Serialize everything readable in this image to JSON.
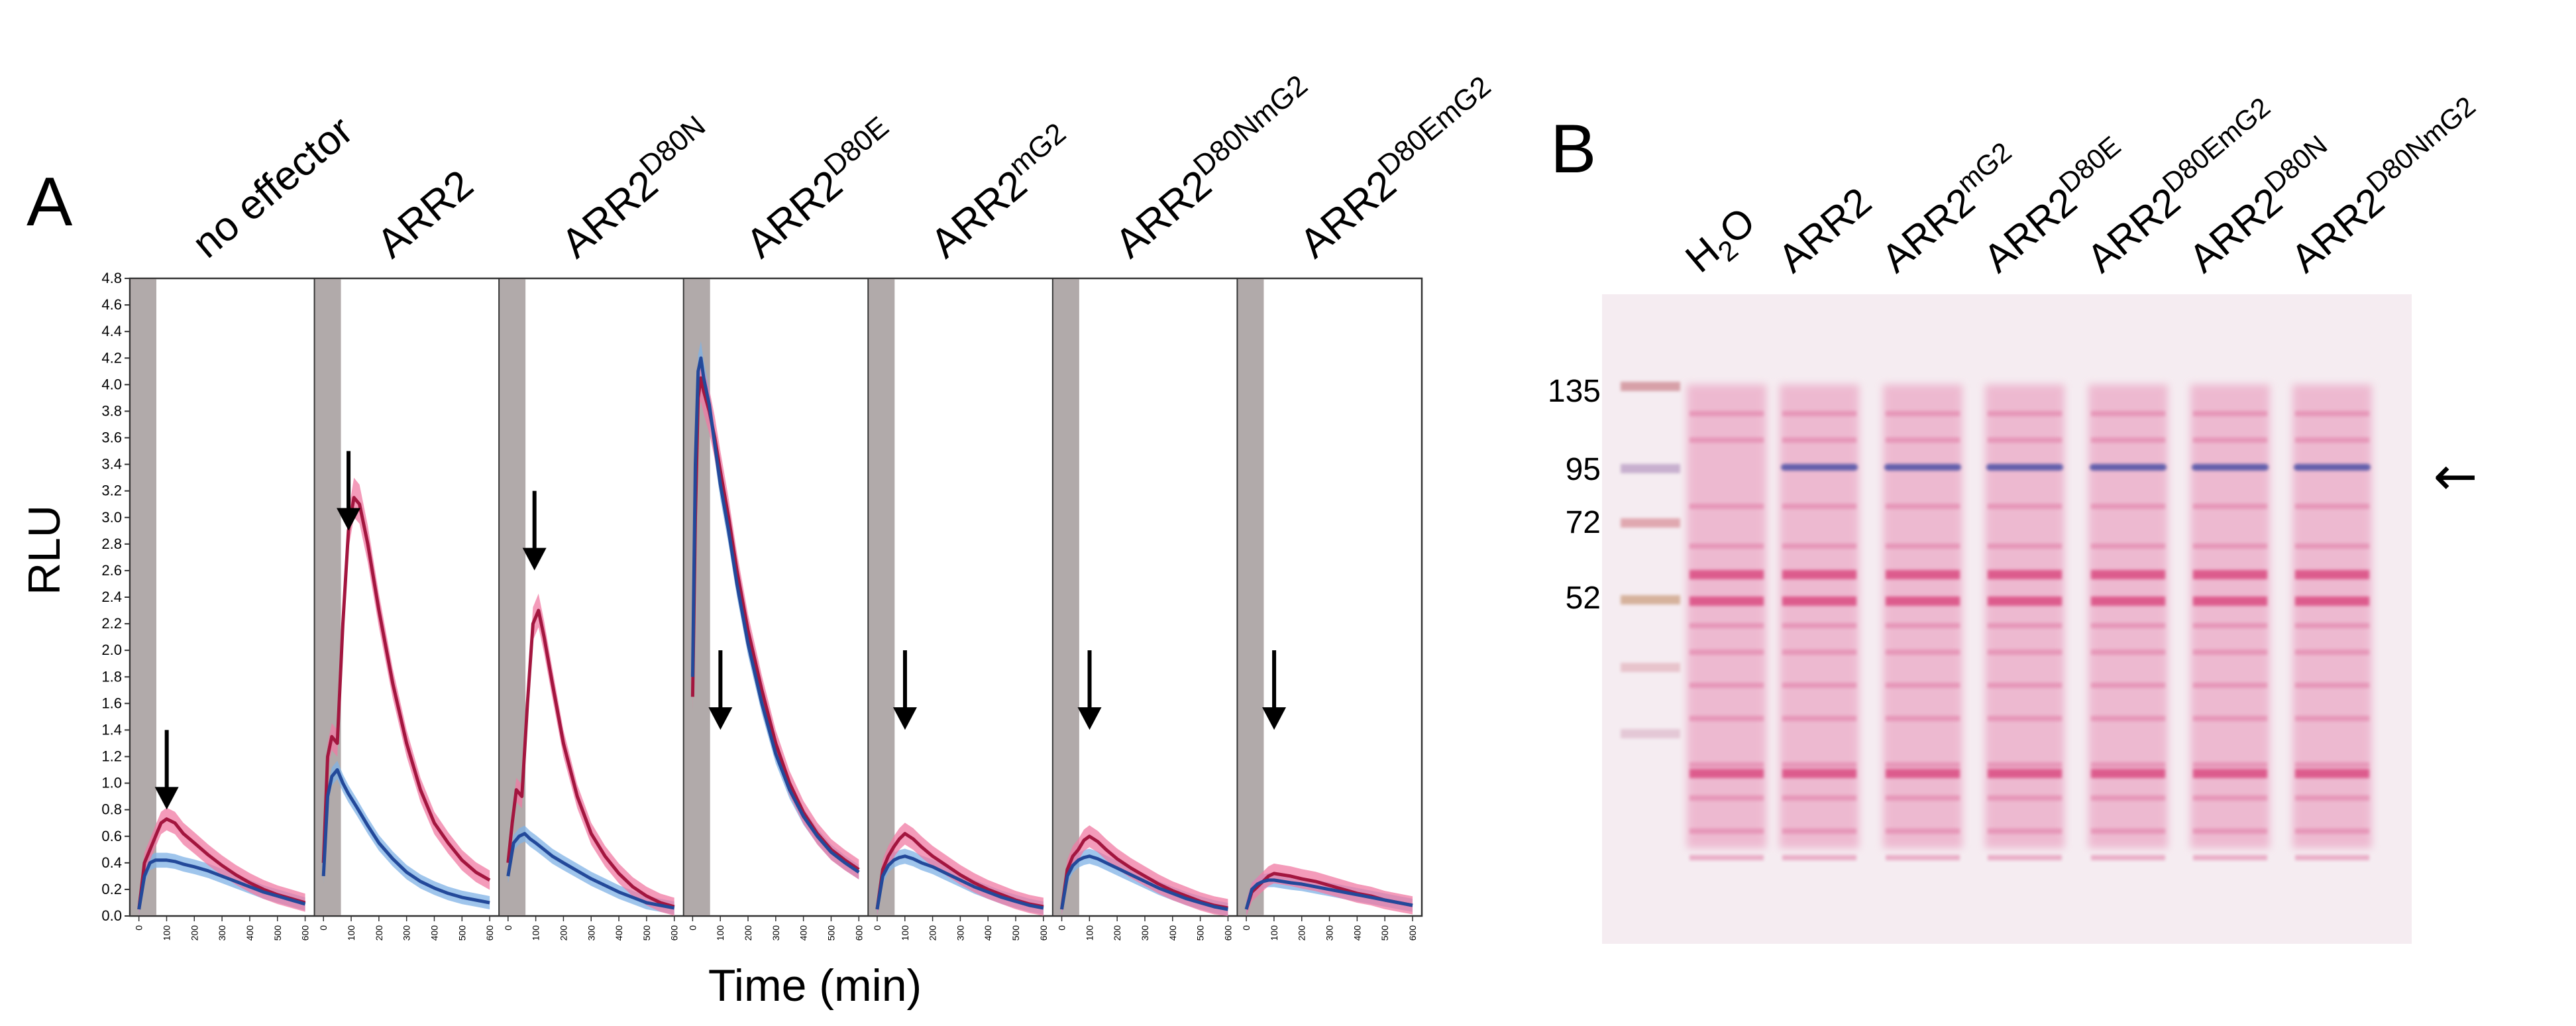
{
  "figure": {
    "panel_a_letter": "A",
    "panel_b_letter": "B"
  },
  "colors": {
    "with_effector_line": "#a3163f",
    "with_effector_band": "#f07aa3",
    "control_line": "#23499a",
    "control_band": "#7fb2e6",
    "treatment_shading": "#a39b9b"
  },
  "chart_data": {
    "type": "line",
    "ylabel": "RLU",
    "xlabel": "Time (min)",
    "ylim": [
      0,
      4.8
    ],
    "xlim": [
      0,
      600
    ],
    "yticks": [
      "0.0",
      "0.2",
      "0.4",
      "0.6",
      "0.8",
      "1.0",
      "1.2",
      "1.4",
      "1.6",
      "1.8",
      "2.0",
      "2.2",
      "2.4",
      "2.6",
      "2.8",
      "3.0",
      "3.2",
      "3.4",
      "3.6",
      "3.8",
      "4.0",
      "4.2",
      "4.4",
      "4.6",
      "4.8"
    ],
    "xticks": [
      "0",
      "100",
      "200",
      "300",
      "400",
      "500",
      "600"
    ],
    "grid": false,
    "panels": [
      {
        "label": "no effector",
        "sup": "",
        "arrow_x": 110,
        "arrow_y": 1.4,
        "pink_x": [
          0,
          20,
          40,
          60,
          80,
          100,
          130,
          160,
          200,
          250,
          300,
          350,
          400,
          450,
          500,
          550,
          600
        ],
        "pink_y": [
          0.05,
          0.4,
          0.5,
          0.6,
          0.7,
          0.73,
          0.7,
          0.62,
          0.55,
          0.46,
          0.38,
          0.31,
          0.25,
          0.2,
          0.16,
          0.13,
          0.1
        ],
        "blue_x": [
          0,
          20,
          40,
          60,
          80,
          100,
          130,
          160,
          200,
          250,
          300,
          350,
          400,
          450,
          500,
          550,
          600
        ],
        "blue_y": [
          0.05,
          0.3,
          0.4,
          0.42,
          0.42,
          0.42,
          0.41,
          0.39,
          0.37,
          0.34,
          0.3,
          0.26,
          0.22,
          0.18,
          0.15,
          0.12,
          0.09
        ]
      },
      {
        "label": "ARR2",
        "sup": "",
        "arrow_x": 100,
        "arrow_y": 3.5,
        "pink_x": [
          0,
          15,
          30,
          50,
          70,
          90,
          110,
          130,
          160,
          200,
          250,
          300,
          350,
          400,
          450,
          500,
          550,
          600
        ],
        "pink_y": [
          0.4,
          1.2,
          1.35,
          1.3,
          2.2,
          2.9,
          3.15,
          3.1,
          2.8,
          2.3,
          1.75,
          1.3,
          0.95,
          0.7,
          0.55,
          0.42,
          0.33,
          0.27
        ],
        "blue_x": [
          0,
          15,
          30,
          50,
          70,
          90,
          120,
          160,
          200,
          250,
          300,
          350,
          400,
          450,
          500,
          550,
          600
        ],
        "blue_y": [
          0.3,
          0.9,
          1.05,
          1.1,
          1.0,
          0.92,
          0.82,
          0.68,
          0.55,
          0.43,
          0.33,
          0.26,
          0.21,
          0.17,
          0.14,
          0.12,
          0.1
        ]
      },
      {
        "label": "ARR2",
        "sup": "D80N",
        "arrow_x": 105,
        "arrow_y": 3.2,
        "pink_x": [
          0,
          15,
          30,
          50,
          70,
          90,
          110,
          130,
          160,
          200,
          250,
          300,
          350,
          400,
          450,
          500,
          550,
          600
        ],
        "pink_y": [
          0.4,
          0.7,
          0.95,
          0.9,
          1.6,
          2.2,
          2.3,
          2.1,
          1.75,
          1.3,
          0.9,
          0.62,
          0.45,
          0.32,
          0.22,
          0.15,
          0.1,
          0.07
        ],
        "blue_x": [
          0,
          20,
          40,
          60,
          80,
          100,
          130,
          160,
          200,
          250,
          300,
          350,
          400,
          450,
          500,
          550,
          600
        ],
        "blue_y": [
          0.3,
          0.55,
          0.6,
          0.62,
          0.58,
          0.55,
          0.5,
          0.45,
          0.4,
          0.34,
          0.28,
          0.23,
          0.18,
          0.14,
          0.1,
          0.08,
          0.06
        ]
      },
      {
        "label": "ARR2",
        "sup": "D80E",
        "arrow_x": 110,
        "arrow_y": 2.0,
        "pink_x": [
          0,
          10,
          20,
          30,
          40,
          60,
          80,
          100,
          130,
          160,
          200,
          250,
          300,
          350,
          400,
          450,
          500,
          550,
          600
        ],
        "pink_y": [
          1.65,
          3.0,
          3.9,
          4.05,
          3.95,
          3.8,
          3.6,
          3.35,
          3.0,
          2.6,
          2.15,
          1.7,
          1.3,
          1.0,
          0.78,
          0.62,
          0.5,
          0.42,
          0.35
        ],
        "blue_x": [
          0,
          10,
          20,
          30,
          40,
          60,
          80,
          100,
          130,
          160,
          200,
          250,
          300,
          350,
          400,
          450,
          500,
          550,
          600
        ],
        "blue_y": [
          1.8,
          3.4,
          4.1,
          4.2,
          4.05,
          3.85,
          3.55,
          3.25,
          2.9,
          2.5,
          2.05,
          1.6,
          1.22,
          0.95,
          0.75,
          0.6,
          0.48,
          0.4,
          0.33
        ]
      },
      {
        "label": "ARR2",
        "sup": "mG2",
        "arrow_x": 110,
        "arrow_y": 2.0,
        "pink_x": [
          0,
          20,
          40,
          60,
          80,
          100,
          130,
          160,
          200,
          250,
          300,
          350,
          400,
          450,
          500,
          550,
          600
        ],
        "pink_y": [
          0.05,
          0.35,
          0.45,
          0.52,
          0.58,
          0.62,
          0.58,
          0.52,
          0.45,
          0.38,
          0.31,
          0.25,
          0.2,
          0.16,
          0.12,
          0.09,
          0.07
        ],
        "blue_x": [
          0,
          20,
          40,
          60,
          80,
          100,
          130,
          160,
          200,
          250,
          300,
          350,
          400,
          450,
          500,
          550,
          600
        ],
        "blue_y": [
          0.05,
          0.3,
          0.38,
          0.42,
          0.44,
          0.45,
          0.43,
          0.4,
          0.37,
          0.32,
          0.27,
          0.22,
          0.18,
          0.14,
          0.11,
          0.08,
          0.06
        ]
      },
      {
        "label": "ARR2",
        "sup": "D80NmG2",
        "arrow_x": 110,
        "arrow_y": 2.0,
        "pink_x": [
          0,
          20,
          40,
          60,
          80,
          100,
          130,
          160,
          200,
          250,
          300,
          350,
          400,
          450,
          500,
          550,
          600
        ],
        "pink_y": [
          0.05,
          0.35,
          0.45,
          0.5,
          0.57,
          0.6,
          0.56,
          0.5,
          0.43,
          0.36,
          0.3,
          0.24,
          0.19,
          0.15,
          0.11,
          0.08,
          0.06
        ],
        "blue_x": [
          0,
          20,
          40,
          60,
          80,
          100,
          130,
          160,
          200,
          250,
          300,
          350,
          400,
          450,
          500,
          550,
          600
        ],
        "blue_y": [
          0.05,
          0.3,
          0.38,
          0.42,
          0.44,
          0.45,
          0.43,
          0.4,
          0.36,
          0.31,
          0.26,
          0.21,
          0.17,
          0.13,
          0.1,
          0.07,
          0.05
        ]
      },
      {
        "label": "ARR2",
        "sup": "D80EmG2",
        "arrow_x": 110,
        "arrow_y": 2.0,
        "pink_x": [
          0,
          20,
          40,
          60,
          80,
          100,
          130,
          160,
          200,
          250,
          300,
          350,
          400,
          450,
          500,
          550,
          600
        ],
        "pink_y": [
          0.05,
          0.18,
          0.22,
          0.26,
          0.3,
          0.32,
          0.31,
          0.3,
          0.28,
          0.26,
          0.23,
          0.2,
          0.17,
          0.15,
          0.12,
          0.1,
          0.08
        ],
        "blue_x": [
          0,
          20,
          40,
          60,
          80,
          100,
          130,
          160,
          200,
          250,
          300,
          350,
          400,
          450,
          500,
          550,
          600
        ],
        "blue_y": [
          0.05,
          0.2,
          0.24,
          0.26,
          0.27,
          0.27,
          0.26,
          0.25,
          0.24,
          0.22,
          0.2,
          0.18,
          0.16,
          0.14,
          0.12,
          0.1,
          0.08
        ]
      }
    ]
  },
  "blot": {
    "mw_markers": [
      "135",
      "95",
      "72",
      "52"
    ],
    "lanes": [
      {
        "label": "H",
        "sub": "2",
        "tail": "O",
        "sup": "",
        "band": false
      },
      {
        "label": "ARR2",
        "sub": "",
        "tail": "",
        "sup": "",
        "band": true
      },
      {
        "label": "ARR2",
        "sub": "",
        "tail": "",
        "sup": "mG2",
        "band": true
      },
      {
        "label": "ARR2",
        "sub": "",
        "tail": "",
        "sup": "D80E",
        "band": true
      },
      {
        "label": "ARR2",
        "sub": "",
        "tail": "",
        "sup": "D80EmG2",
        "band": true
      },
      {
        "label": "ARR2",
        "sub": "",
        "tail": "",
        "sup": "D80N",
        "band": true
      },
      {
        "label": "ARR2",
        "sub": "",
        "tail": "",
        "sup": "D80NmG2",
        "band": true
      }
    ],
    "arrow": "←"
  }
}
